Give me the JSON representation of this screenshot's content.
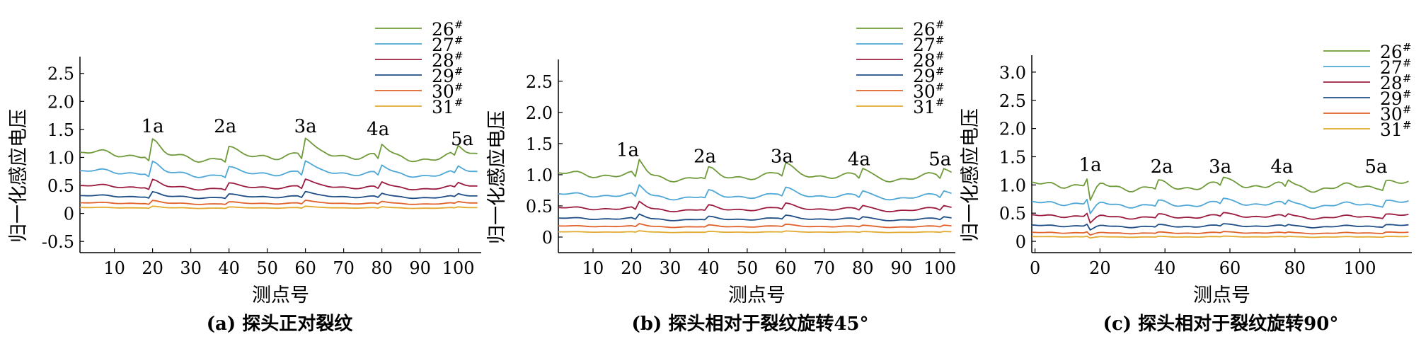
{
  "panels": [
    {
      "caption": "(a) 探头正对裂纹",
      "chart_data": {
        "type": "line",
        "xlabel": "测点号",
        "ylabel": "归一化感应电压",
        "xlim": [
          1,
          106
        ],
        "ylim": [
          -0.7,
          2.8
        ],
        "xticks": [
          10,
          20,
          30,
          40,
          50,
          60,
          70,
          80,
          90,
          100
        ],
        "yticks": [
          -0.5,
          0,
          0.5,
          1.0,
          1.5,
          2.0,
          2.5
        ],
        "ytick_labels": [
          "-0.5",
          "0",
          "0.5",
          "1.0",
          "1.5",
          "2.0",
          "2.5"
        ],
        "legend_position": "top-right",
        "series": [
          {
            "name": "26",
            "base": 1.03
          },
          {
            "name": "27",
            "base": 0.72
          },
          {
            "name": "28",
            "base": 0.47
          },
          {
            "name": "29",
            "base": 0.3
          },
          {
            "name": "30",
            "base": 0.18
          },
          {
            "name": "31",
            "base": 0.1
          }
        ],
        "amp": 0.11,
        "spikes": [
          [
            20,
            0.26
          ],
          [
            40,
            0.18
          ],
          [
            60,
            0.26
          ],
          [
            80,
            0.2
          ],
          [
            100,
            0.14
          ]
        ],
        "annotations": [
          {
            "text": "1a",
            "x": 20,
            "y": 1.45
          },
          {
            "text": "2a",
            "x": 39,
            "y": 1.45
          },
          {
            "text": "3a",
            "x": 60,
            "y": 1.45
          },
          {
            "text": "4a",
            "x": 79,
            "y": 1.4
          },
          {
            "text": "5a",
            "x": 101,
            "y": 1.22
          }
        ]
      }
    },
    {
      "caption": "(b) 探头相对于裂纹旋转45°",
      "chart_data": {
        "type": "line",
        "xlabel": "测点号",
        "ylabel": "归一化感应电压",
        "xlim": [
          1,
          104
        ],
        "ylim": [
          -0.25,
          2.85
        ],
        "xticks": [
          10,
          20,
          30,
          40,
          50,
          60,
          70,
          80,
          90,
          100
        ],
        "yticks": [
          0,
          0.5,
          1.0,
          1.5,
          2.0,
          2.5
        ],
        "ytick_labels": [
          "0",
          "0.5",
          "1.0",
          "1.5",
          "2.0",
          "2.5"
        ],
        "legend_position": "top-right",
        "series": [
          {
            "name": "26",
            "base": 0.98
          },
          {
            "name": "27",
            "base": 0.66
          },
          {
            "name": "28",
            "base": 0.45
          },
          {
            "name": "29",
            "base": 0.29
          },
          {
            "name": "30",
            "base": 0.17
          },
          {
            "name": "31",
            "base": 0.08
          }
        ],
        "amp": 0.09,
        "spikes": [
          [
            22,
            0.22
          ],
          [
            40,
            0.12
          ],
          [
            60,
            0.14
          ],
          [
            80,
            0.12
          ],
          [
            101,
            0.12
          ]
        ],
        "annotations": [
          {
            "text": "1a",
            "x": 19,
            "y": 1.3
          },
          {
            "text": "2a",
            "x": 39,
            "y": 1.2
          },
          {
            "text": "3a",
            "x": 59,
            "y": 1.2
          },
          {
            "text": "4a",
            "x": 79,
            "y": 1.15
          },
          {
            "text": "5a",
            "x": 100,
            "y": 1.15
          }
        ]
      }
    },
    {
      "caption": "(c) 探头相对于裂纹旋转90°",
      "chart_data": {
        "type": "line",
        "xlabel": "测点号",
        "ylabel": "归一化感应电压",
        "xlim": [
          -1,
          116
        ],
        "ylim": [
          -0.2,
          3.3
        ],
        "xticks": [
          0,
          20,
          40,
          60,
          80,
          100
        ],
        "yticks": [
          0,
          0.5,
          1.0,
          1.5,
          2.0,
          2.5,
          3.0
        ],
        "ytick_labels": [
          "0",
          "0.5",
          "1.0",
          "1.5",
          "2.0",
          "2.5",
          "3.0"
        ],
        "legend_position": "top-right",
        "series": [
          {
            "name": "26",
            "base": 0.98
          },
          {
            "name": "27",
            "base": 0.66
          },
          {
            "name": "28",
            "base": 0.44
          },
          {
            "name": "29",
            "base": 0.27
          },
          {
            "name": "30",
            "base": 0.15
          },
          {
            "name": "31",
            "base": 0.08
          }
        ],
        "amp": 0.1,
        "spikes": [
          [
            17,
            -0.3
          ],
          [
            38,
            0.1
          ],
          [
            58,
            0.1
          ],
          [
            78,
            0.1
          ],
          [
            108,
            0.1
          ]
        ],
        "annotations": [
          {
            "text": "1a",
            "x": 17,
            "y": 1.25
          },
          {
            "text": "2a",
            "x": 39,
            "y": 1.22
          },
          {
            "text": "3a",
            "x": 57,
            "y": 1.22
          },
          {
            "text": "4a",
            "x": 76,
            "y": 1.22
          },
          {
            "text": "5a",
            "x": 105,
            "y": 1.22
          }
        ]
      }
    }
  ],
  "legend_suffix": "#",
  "colors": [
    "#6f9a3a",
    "#4ea7d6",
    "#9b1b3f",
    "#1f4e86",
    "#e0612a",
    "#e2a92e"
  ]
}
